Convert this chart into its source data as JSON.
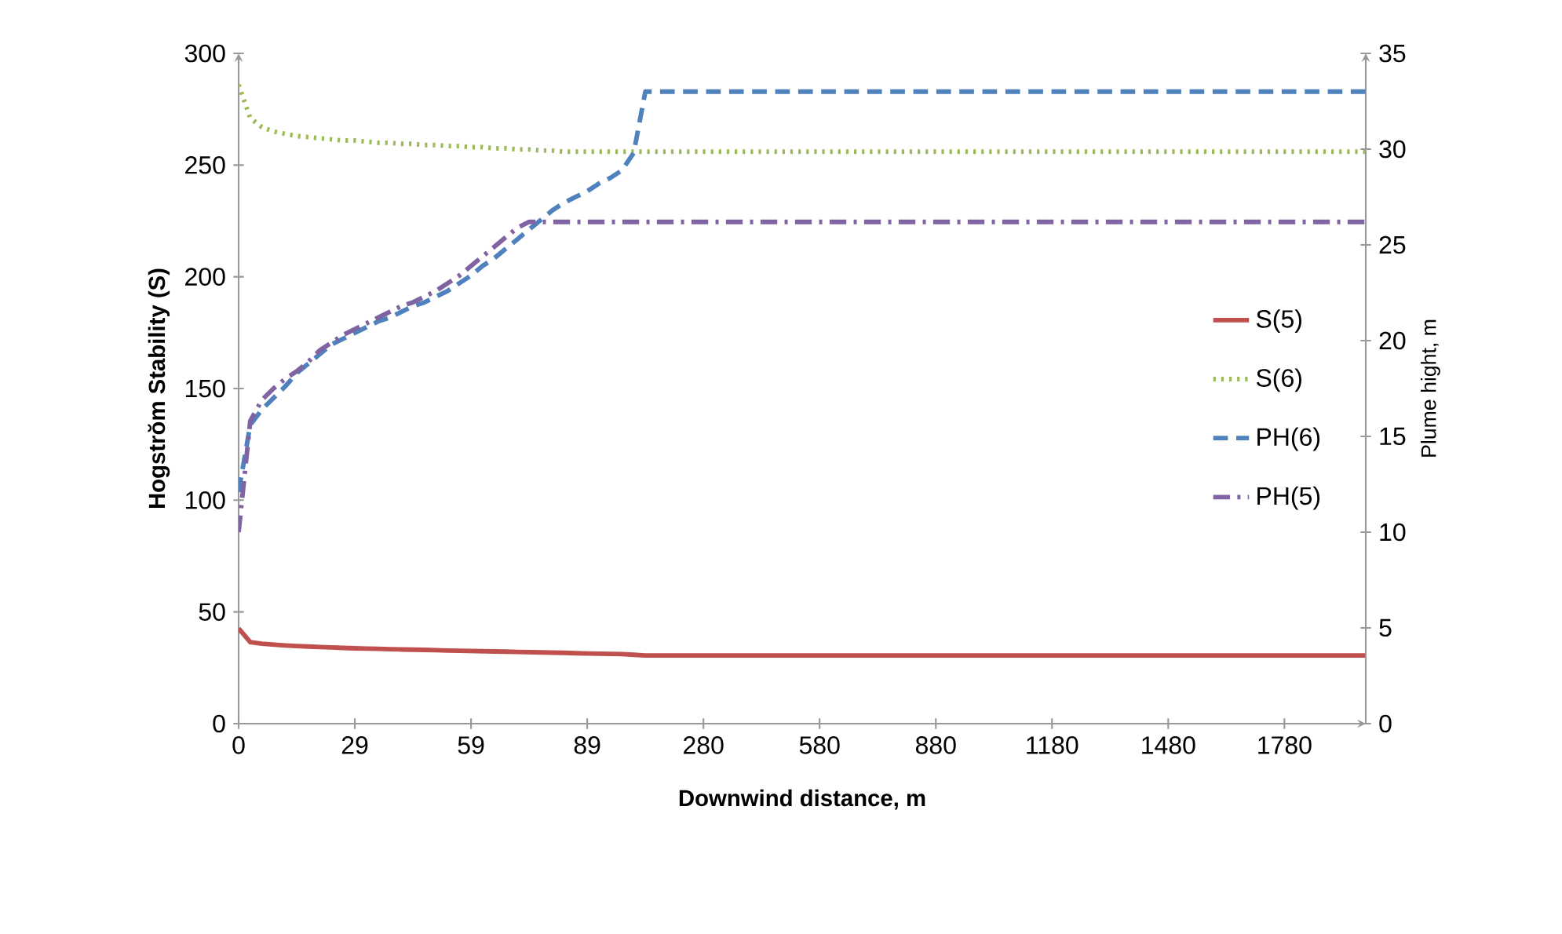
{
  "chart_data": {
    "type": "line",
    "xlabel": "Downwind distance,  m",
    "ylabel": "Hogstrŏm Stability (S)",
    "y2label": "Plume hight, m",
    "categories": [
      "0",
      null,
      null,
      null,
      null,
      null,
      null,
      null,
      null,
      null,
      "29",
      null,
      null,
      null,
      null,
      null,
      null,
      null,
      null,
      null,
      "59",
      null,
      null,
      null,
      null,
      null,
      null,
      null,
      null,
      null,
      "89",
      null,
      null,
      null,
      null,
      null,
      null,
      null,
      null,
      null,
      "280",
      null,
      null,
      null,
      null,
      null,
      null,
      null,
      null,
      null,
      "580",
      null,
      null,
      null,
      null,
      null,
      null,
      null,
      null,
      null,
      "880",
      null,
      null,
      null,
      null,
      null,
      null,
      null,
      null,
      null,
      "1180",
      null,
      null,
      null,
      null,
      null,
      null,
      null,
      null,
      null,
      "1480",
      null,
      null,
      null,
      null,
      null,
      null,
      null,
      null,
      null,
      "1780",
      null,
      null,
      null,
      null,
      null,
      null,
      null
    ],
    "ylim": [
      0,
      300
    ],
    "yticks": [
      0,
      50,
      100,
      150,
      200,
      250,
      300
    ],
    "y2lim": [
      0,
      35
    ],
    "y2ticks": [
      0,
      5,
      10,
      15,
      20,
      25,
      30,
      35
    ],
    "legend": "right",
    "grid": false,
    "series": [
      {
        "name": "S(5)",
        "color": "#c0504d",
        "line_style": "solid",
        "values": [
          42.6,
          36.5,
          35.8,
          35.4,
          35.0,
          34.7,
          34.5,
          34.3,
          34.1,
          33.9,
          33.7,
          33.6,
          33.5,
          33.3,
          33.2,
          33.1,
          33.0,
          32.9,
          32.7,
          32.6,
          32.5,
          32.4,
          32.3,
          32.2,
          32.1,
          32.0,
          31.9,
          31.8,
          31.7,
          31.5,
          31.4,
          31.3,
          31.2,
          31.1,
          30.8,
          30.5,
          30.5,
          30.5,
          30.5,
          30.5,
          30.5,
          30.5,
          30.5,
          30.5,
          30.5,
          30.5,
          30.5,
          30.5,
          30.5,
          30.5,
          30.5,
          30.5,
          30.5,
          30.5,
          30.5,
          30.5,
          30.5,
          30.5,
          30.5,
          30.5,
          30.5,
          30.5,
          30.5,
          30.5,
          30.5,
          30.5,
          30.5,
          30.5,
          30.5,
          30.5,
          30.5,
          30.5,
          30.5,
          30.5,
          30.5,
          30.5,
          30.5,
          30.5,
          30.5,
          30.5,
          30.5,
          30.5,
          30.5,
          30.5,
          30.5,
          30.5,
          30.5,
          30.5,
          30.5,
          30.5,
          30.5,
          30.5,
          30.5,
          30.5,
          30.5,
          30.5,
          30.5,
          30.5
        ]
      },
      {
        "name": "S(6)",
        "color": "#9bbb59",
        "line_style": "dotted",
        "values": [
          286,
          271,
          267,
          265,
          264,
          263,
          262.5,
          262,
          261.5,
          261,
          261,
          260.5,
          260,
          260,
          259.5,
          259.5,
          259,
          259,
          258.5,
          258.5,
          258,
          258,
          257.5,
          257.5,
          257,
          257,
          256.5,
          256.5,
          256,
          256,
          256,
          256,
          256,
          256,
          256,
          256,
          256,
          256,
          256,
          256,
          256,
          256,
          256,
          256,
          256,
          256,
          256,
          256,
          256,
          256,
          256,
          256,
          256,
          256,
          256,
          256,
          256,
          256,
          256,
          256,
          256,
          256,
          256,
          256,
          256,
          256,
          256,
          256,
          256,
          256,
          256,
          256,
          256,
          256,
          256,
          256,
          256,
          256,
          256,
          256,
          256,
          256,
          256,
          256,
          256,
          256,
          256,
          256,
          256,
          256,
          256,
          256,
          256,
          256,
          256,
          256,
          256,
          256
        ]
      },
      {
        "name": "PH(6)",
        "color": "#4f81bd",
        "line_style": "dashed",
        "axis": "y2",
        "values": [
          12.1,
          15.6,
          16.4,
          17.0,
          17.6,
          18.3,
          18.8,
          19.3,
          19.8,
          20.1,
          20.4,
          20.7,
          21.0,
          21.2,
          21.5,
          21.8,
          22.0,
          22.3,
          22.6,
          23.0,
          23.4,
          23.9,
          24.3,
          24.8,
          25.3,
          25.8,
          26.3,
          26.8,
          27.2,
          27.5,
          27.8,
          28.2,
          28.5,
          28.9,
          29.8,
          33,
          33,
          33,
          33,
          33,
          33,
          33,
          33,
          33,
          33,
          33,
          33,
          33,
          33,
          33,
          33,
          33,
          33,
          33,
          33,
          33,
          33,
          33,
          33,
          33,
          33,
          33,
          33,
          33,
          33,
          33,
          33,
          33,
          33,
          33,
          33,
          33,
          33,
          33,
          33,
          33,
          33,
          33,
          33,
          33,
          33,
          33,
          33,
          33,
          33,
          33,
          33,
          33,
          33,
          33,
          33,
          33,
          33,
          33,
          33,
          33,
          33,
          33
        ]
      },
      {
        "name": "PH(5)",
        "color": "#8064a2",
        "line_style": "dashdot",
        "axis": "y2",
        "values": [
          10.0,
          15.8,
          16.9,
          17.5,
          18.0,
          18.4,
          18.9,
          19.5,
          19.9,
          20.3,
          20.6,
          20.9,
          21.2,
          21.5,
          21.8,
          22.0,
          22.3,
          22.6,
          23.0,
          23.4,
          23.9,
          24.4,
          24.9,
          25.4,
          25.9,
          26.2,
          26.2,
          26.2,
          26.2,
          26.2,
          26.2,
          26.2,
          26.2,
          26.2,
          26.2,
          26.2,
          26.2,
          26.2,
          26.2,
          26.2,
          26.2,
          26.2,
          26.2,
          26.2,
          26.2,
          26.2,
          26.2,
          26.2,
          26.2,
          26.2,
          26.2,
          26.2,
          26.2,
          26.2,
          26.2,
          26.2,
          26.2,
          26.2,
          26.2,
          26.2,
          26.2,
          26.2,
          26.2,
          26.2,
          26.2,
          26.2,
          26.2,
          26.2,
          26.2,
          26.2,
          26.2,
          26.2,
          26.2,
          26.2,
          26.2,
          26.2,
          26.2,
          26.2,
          26.2,
          26.2,
          26.2,
          26.2,
          26.2,
          26.2,
          26.2,
          26.2,
          26.2,
          26.2,
          26.2,
          26.2,
          26.2,
          26.2,
          26.2,
          26.2,
          26.2,
          26.2,
          26.2,
          26.2
        ]
      }
    ]
  }
}
